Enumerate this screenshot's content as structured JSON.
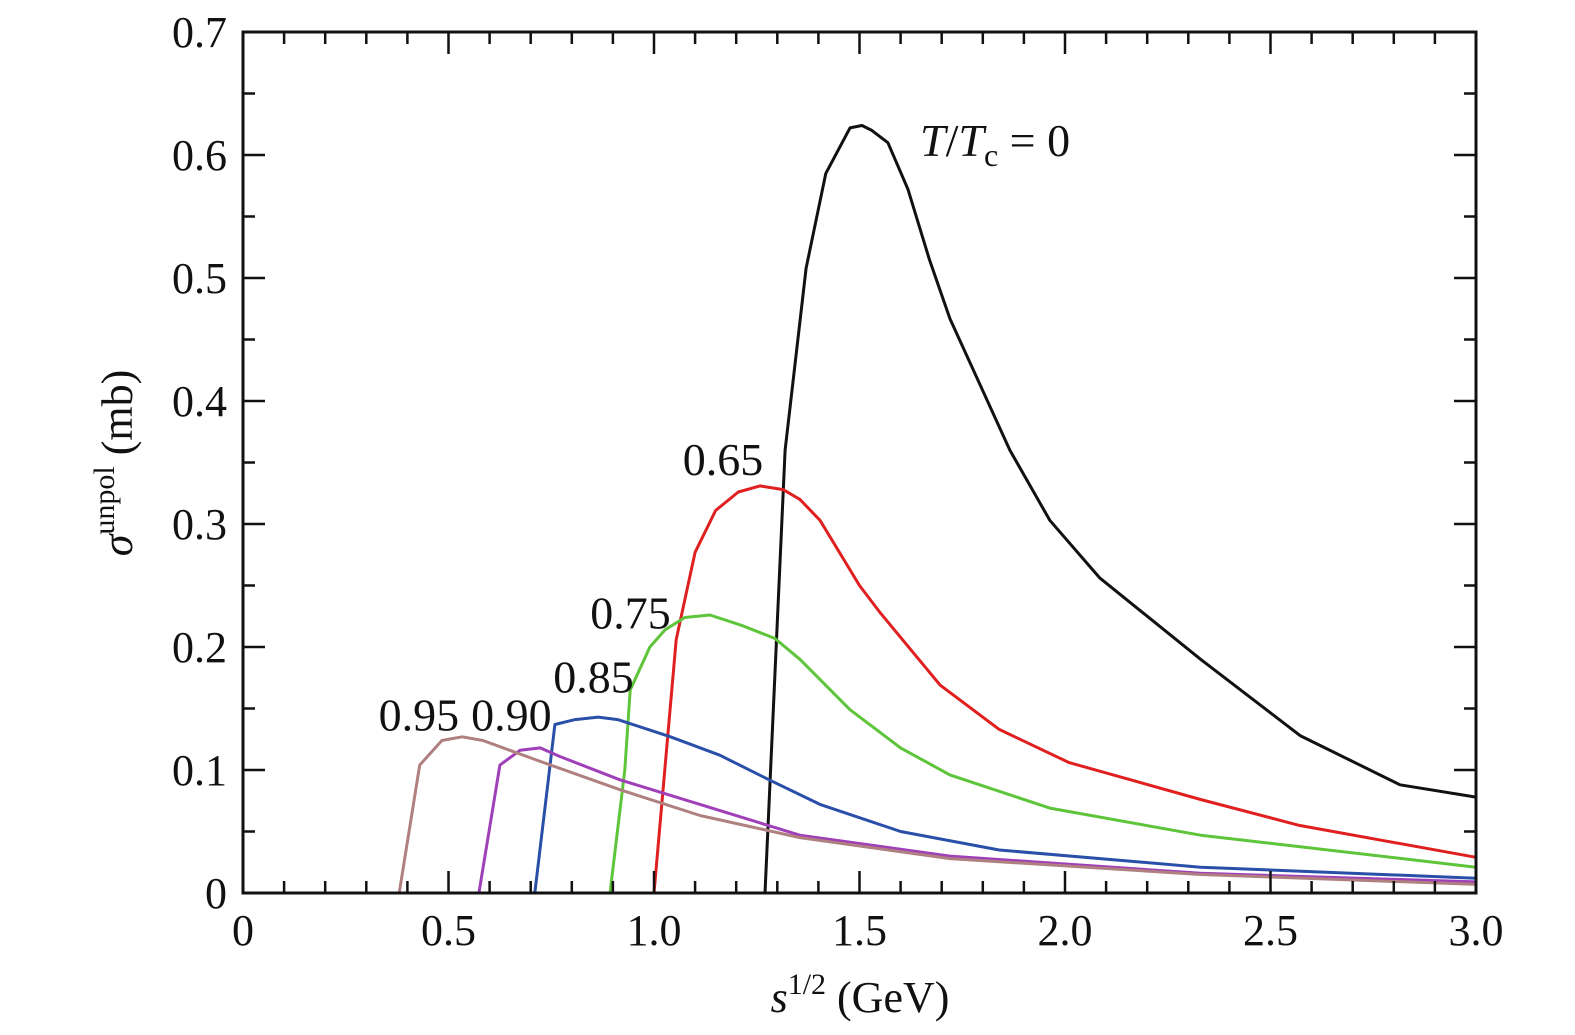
{
  "chart_data": {
    "type": "line",
    "title": "",
    "xlabel": {
      "main": "s",
      "sup": "1/2",
      "unit": " (GeV)"
    },
    "ylabel": {
      "main": "σ",
      "sup": "unpol",
      "unit": " (mb)"
    },
    "xlim": [
      0,
      3.0
    ],
    "ylim": [
      0,
      0.7
    ],
    "x_ticks": [
      0,
      0.5,
      1.0,
      1.5,
      2.0,
      2.5,
      3.0
    ],
    "x_tick_labels": [
      "0",
      "0.5",
      "1.0",
      "1.5",
      "2.0",
      "2.5",
      "3.0"
    ],
    "y_ticks": [
      0,
      0.1,
      0.2,
      0.3,
      0.4,
      0.5,
      0.6,
      0.7
    ],
    "y_tick_labels": [
      "0",
      "0.1",
      "0.2",
      "0.3",
      "0.4",
      "0.5",
      "0.6",
      "0.7"
    ],
    "grid": false,
    "series": [
      {
        "name": "T/Tc = 0",
        "label_parts": {
          "t": "T",
          "slash": "/",
          "tc": "T",
          "sub": "c",
          "rest": " = 0"
        },
        "color": "#111111",
        "label_at": [
          1.65,
          0.61
        ],
        "x": [
          1.27,
          1.319,
          1.37,
          1.418,
          1.477,
          1.506,
          1.53,
          1.569,
          1.618,
          1.67,
          1.72,
          1.866,
          1.963,
          2.085,
          2.33,
          2.572,
          2.815,
          3.0
        ],
        "y": [
          0,
          0.36,
          0.508,
          0.585,
          0.622,
          0.624,
          0.62,
          0.61,
          0.572,
          0.515,
          0.467,
          0.36,
          0.303,
          0.256,
          0.19,
          0.128,
          0.088,
          0.078
        ]
      },
      {
        "name": "0.65",
        "label": "0.65",
        "color": "#e02020",
        "label_at": [
          1.07,
          0.34
        ],
        "x": [
          1.0,
          1.054,
          1.1,
          1.15,
          1.205,
          1.258,
          1.314,
          1.355,
          1.404,
          1.5,
          1.55,
          1.696,
          1.84,
          2.01,
          2.33,
          2.57,
          3.0
        ],
        "y": [
          0,
          0.206,
          0.277,
          0.311,
          0.326,
          0.331,
          0.328,
          0.32,
          0.303,
          0.25,
          0.228,
          0.169,
          0.133,
          0.106,
          0.076,
          0.055,
          0.029
        ]
      },
      {
        "name": "0.75",
        "label": "0.75",
        "color": "#5ec43a",
        "label_at": [
          0.845,
          0.215
        ],
        "x": [
          0.893,
          0.929,
          0.942,
          0.99,
          1.027,
          1.075,
          1.136,
          1.21,
          1.294,
          1.355,
          1.477,
          1.6,
          1.72,
          1.963,
          2.33,
          3.0
        ],
        "y": [
          0,
          0.1,
          0.165,
          0.2,
          0.214,
          0.224,
          0.226,
          0.218,
          0.207,
          0.19,
          0.149,
          0.118,
          0.096,
          0.069,
          0.047,
          0.021
        ]
      },
      {
        "name": "0.85",
        "label": "0.85",
        "color": "#2a4fa8",
        "label_at": [
          0.755,
          0.163
        ],
        "x": [
          0.71,
          0.759,
          0.808,
          0.864,
          0.912,
          1.04,
          1.16,
          1.28,
          1.404,
          1.6,
          1.84,
          2.33,
          3.0
        ],
        "y": [
          0,
          0.137,
          0.141,
          0.143,
          0.141,
          0.127,
          0.112,
          0.092,
          0.072,
          0.05,
          0.035,
          0.021,
          0.012
        ]
      },
      {
        "name": "0.90",
        "label": "0.90",
        "color": "#a040b8",
        "label_at": [
          0.555,
          0.132
        ],
        "x": [
          0.574,
          0.625,
          0.674,
          0.723,
          0.771,
          0.917,
          1.112,
          1.355,
          1.72,
          2.33,
          3.0
        ],
        "y": [
          0,
          0.104,
          0.116,
          0.118,
          0.111,
          0.092,
          0.072,
          0.047,
          0.03,
          0.016,
          0.009
        ]
      },
      {
        "name": "0.95",
        "label": "0.95",
        "color": "#b08080",
        "label_at": [
          0.33,
          0.132
        ],
        "x": [
          0.38,
          0.43,
          0.484,
          0.533,
          0.584,
          0.723,
          0.917,
          1.112,
          1.355,
          1.72,
          2.33,
          3.0
        ],
        "y": [
          0,
          0.104,
          0.124,
          0.127,
          0.124,
          0.107,
          0.084,
          0.063,
          0.045,
          0.028,
          0.015,
          0.007
        ]
      }
    ]
  }
}
